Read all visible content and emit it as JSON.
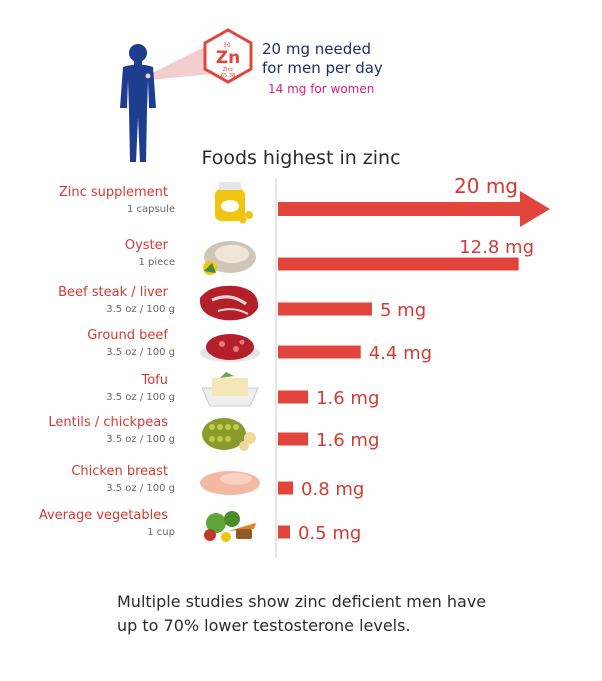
{
  "header": {
    "element_symbol": "Zn",
    "element_number": "30",
    "element_name": "Zinc",
    "element_mass": "65.38",
    "needed_men_line1": "20 mg needed",
    "needed_men_line2": "for men per day",
    "needed_women": "14 mg for women"
  },
  "colors": {
    "bar": "#e2453b",
    "label": "#d33a32",
    "sub": "#666666",
    "body": "#1f3d8f",
    "women": "#d2227e",
    "axis": "#cccccc"
  },
  "chart_data": {
    "type": "bar",
    "orientation": "horizontal",
    "title": "Foods highest in zinc",
    "categories": [
      "Zinc supplement",
      "Oyster",
      "Beef steak / liver",
      "Ground beef",
      "Tofu",
      "Lentils / chickpeas",
      "Chicken breast",
      "Average vegetables"
    ],
    "serving": [
      "1 capsule",
      "1 piece",
      "3.5 oz / 100 g",
      "3.5 oz / 100 g",
      "3.5 oz / 100 g",
      "3.5 oz / 100 g",
      "3.5 oz / 100 g",
      "1 cup"
    ],
    "values": [
      20,
      12.8,
      5,
      4.4,
      1.6,
      1.6,
      0.8,
      0.5
    ],
    "value_labels": [
      "20 mg",
      "12.8 mg",
      "5 mg",
      "4.4 mg",
      "1.6 mg",
      "1.6 mg",
      "0.8 mg",
      "0.5 mg"
    ],
    "units": "mg",
    "first_bar_arrow": true,
    "icons": [
      "supplement-bottle-icon",
      "oyster-icon",
      "beef-steak-icon",
      "ground-beef-icon",
      "tofu-icon",
      "lentils-chickpeas-icon",
      "chicken-breast-icon",
      "vegetables-icon"
    ],
    "grid": false
  },
  "footer": {
    "line1": "Multiple studies show zinc deficient men have",
    "line2": "up to 70% lower testosterone levels."
  }
}
